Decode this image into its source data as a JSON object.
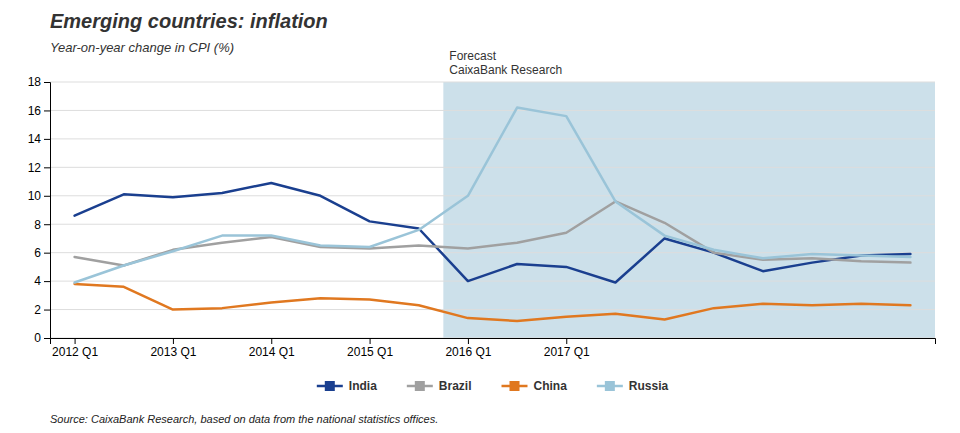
{
  "chart_data": {
    "type": "line",
    "title": "Emerging countries: inflation",
    "subtitle": "Year-on-year change in CPI (%)",
    "source": "Source: CaixaBank Research, based on data from the national statistics offices.",
    "annotations": [
      {
        "text": "Forecast\nCaixaBank Research",
        "x": "2016 Q1",
        "color": "#cce0ea"
      }
    ],
    "categories": [
      "2012 Q1",
      null,
      "2013 Q1",
      null,
      "2014 Q1",
      null,
      "2015 Q1",
      null,
      "2016 Q1",
      null,
      "2017 Q1",
      null,
      null,
      null,
      null,
      null,
      null,
      null
    ],
    "series": [
      {
        "name": "India",
        "color": "#1a3f8f",
        "values": [
          8.6,
          10.1,
          9.9,
          10.2,
          10.9,
          10.0,
          8.2,
          7.7,
          4.0,
          5.2,
          5.0,
          3.9,
          7.0,
          6.0,
          4.7,
          5.3,
          5.8,
          5.9
        ]
      },
      {
        "name": "Brazil",
        "color": "#a0a0a0",
        "values": [
          5.7,
          5.1,
          6.2,
          6.7,
          7.1,
          6.4,
          6.3,
          6.5,
          6.3,
          6.7,
          7.4,
          9.6,
          8.1,
          6.0,
          5.5,
          5.6,
          5.4,
          5.3
        ]
      },
      {
        "name": "China",
        "color": "#e07820",
        "values": [
          3.8,
          3.6,
          2.0,
          2.1,
          2.5,
          2.8,
          2.7,
          2.3,
          1.4,
          1.2,
          1.5,
          1.7,
          1.3,
          2.1,
          2.4,
          2.3,
          2.4,
          2.3
        ]
      },
      {
        "name": "Russia",
        "color": "#9ac4d8",
        "values": [
          3.9,
          5.1,
          6.1,
          7.2,
          7.2,
          6.5,
          6.4,
          7.6,
          10.0,
          16.2,
          15.6,
          9.6,
          7.2,
          6.2,
          5.6,
          5.9,
          5.8,
          5.7
        ]
      }
    ],
    "ylim": [
      0,
      18
    ],
    "yticks": [
      0,
      2,
      4,
      6,
      8,
      10,
      12,
      14,
      16,
      18
    ],
    "grid": true,
    "legend": "bottom"
  }
}
